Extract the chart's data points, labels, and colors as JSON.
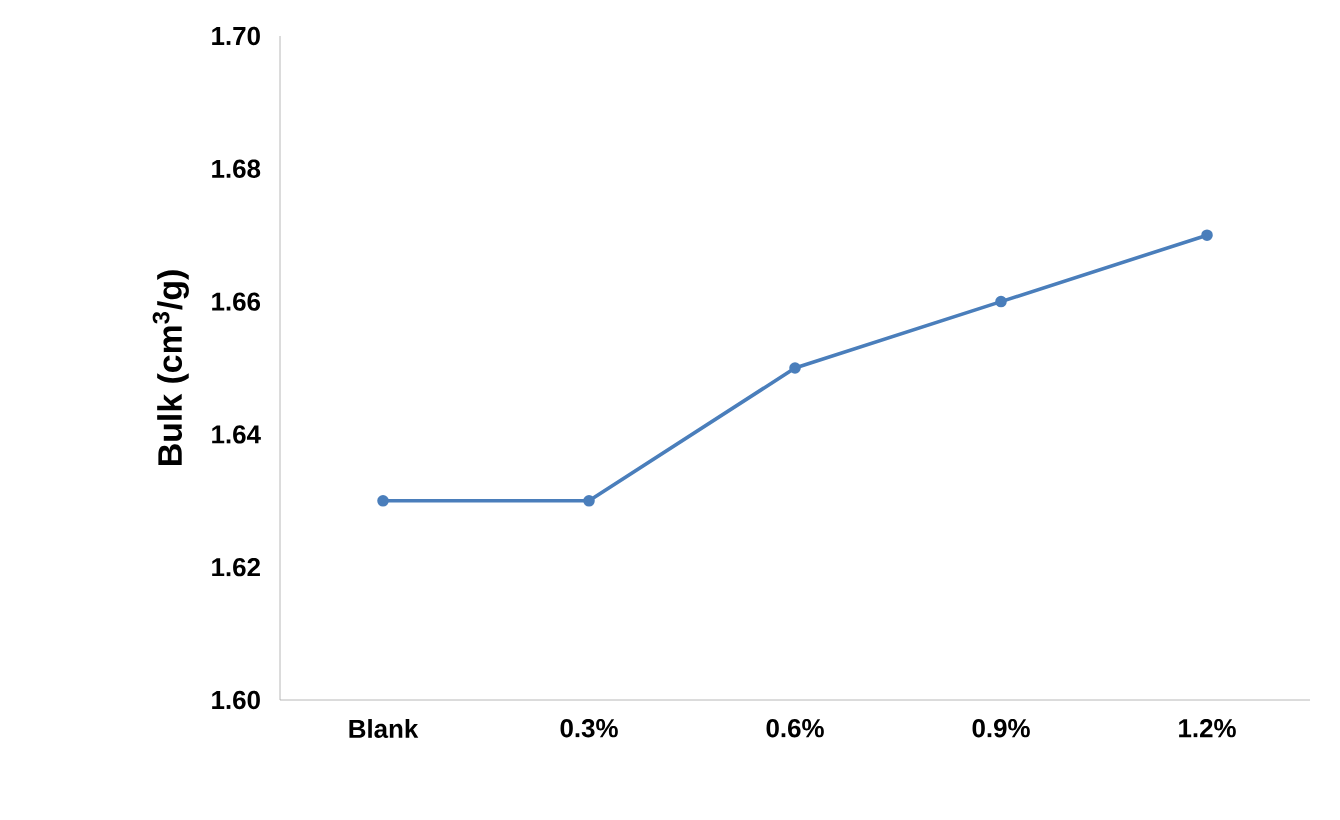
{
  "chart_data": {
    "type": "line",
    "ylabel": "Bulk (cm$^{3}$/g)",
    "categories": [
      "Blank",
      "0.3%",
      "0.6%",
      "0.9%",
      "1.2%"
    ],
    "values": [
      1.63,
      1.63,
      1.65,
      1.66,
      1.67
    ],
    "color": "#4a7ebb",
    "ylim": [
      1.6,
      1.7
    ],
    "yticks": [
      {
        "value": 1.6,
        "label": "1.60"
      },
      {
        "value": 1.62,
        "label": "1.62"
      },
      {
        "value": 1.64,
        "label": "1.64"
      },
      {
        "value": 1.66,
        "label": "1.66"
      },
      {
        "value": 1.68,
        "label": "1.68"
      },
      {
        "value": 1.7,
        "label": "1.70"
      }
    ],
    "marker": "circle",
    "line_style": "solid"
  }
}
